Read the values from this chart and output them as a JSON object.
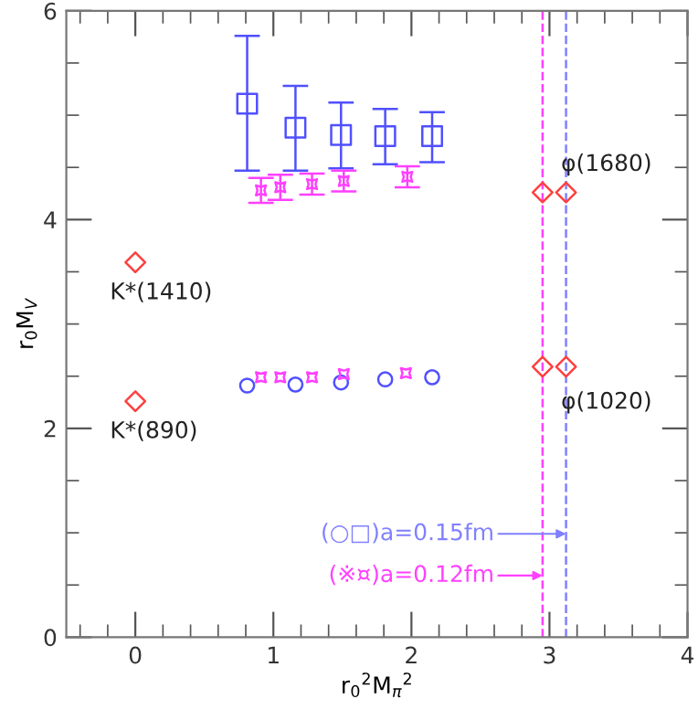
{
  "chart_data": {
    "type": "scatter",
    "xlabel": "r$_{0}$$^{2}$M$_{π}$$^{2}$",
    "ylabel": "r$_{0}$M$_{V}$",
    "xlim": [
      -0.5,
      4
    ],
    "ylim": [
      0,
      6
    ],
    "xticks": [
      0,
      1,
      2,
      3,
      4
    ],
    "yticks": [
      0,
      2,
      4,
      6
    ],
    "tick_labels": "xy",
    "grid": false,
    "series": [
      {
        "color": "#5050ff",
        "marker": "square",
        "x": [
          0.81,
          1.16,
          1.49,
          1.81,
          2.15
        ],
        "values": [
          5.11,
          4.88,
          4.81,
          4.8,
          4.8
        ],
        "errors": [
          [
            4.47,
            5.76
          ],
          [
            4.47,
            5.28
          ],
          [
            4.49,
            5.12
          ],
          [
            4.53,
            5.06
          ],
          [
            4.55,
            5.03
          ]
        ]
      },
      {
        "color": "#5050ff",
        "marker": "circle",
        "x": [
          0.81,
          1.16,
          1.49,
          1.81,
          2.15
        ],
        "values": [
          2.41,
          2.42,
          2.44,
          2.47,
          2.49
        ]
      },
      {
        "color": "#ff40ff",
        "marker": "star",
        "x": [
          0.91,
          1.05,
          1.28,
          1.51,
          1.97
        ],
        "values": [
          4.28,
          4.31,
          4.34,
          4.37,
          4.41
        ],
        "errors": [
          0.12,
          0.12,
          0.1,
          0.1,
          0.1
        ]
      },
      {
        "color": "#ff40ff",
        "marker": "star",
        "x": [
          0.91,
          1.05,
          1.28,
          1.51,
          1.96
        ],
        "values": [
          2.49,
          2.49,
          2.49,
          2.52,
          2.53
        ]
      },
      {
        "color": "#ff4040",
        "marker": "diamond",
        "x": [
          0,
          0,
          2.95,
          3.12,
          2.95,
          3.12
        ],
        "values": [
          3.59,
          2.26,
          4.26,
          4.26,
          2.59,
          2.59
        ]
      }
    ],
    "ref_lines": [
      {
        "axis": "x",
        "value": 2.95,
        "color": "#ff40ff",
        "line_style": "dashed"
      },
      {
        "axis": "x",
        "value": 3.12,
        "color": "#8080ff",
        "line_style": "dashed"
      }
    ],
    "annotations": [
      {
        "text": "K*(1410)",
        "x": 0,
        "y": 3.59
      },
      {
        "text": "K*(890)",
        "x": 0,
        "y": 2.26
      },
      {
        "text": "φ(1680)",
        "x": 3.12,
        "y": 4.26
      },
      {
        "text": "φ(1020)",
        "x": 3.12,
        "y": 2.59
      },
      {
        "text": "(○□)a=0.15fm",
        "x": 3.12,
        "y": 0.99
      },
      {
        "text": "(※¤)a=0.12fm",
        "x": 2.95,
        "y": 0.59
      }
    ]
  }
}
